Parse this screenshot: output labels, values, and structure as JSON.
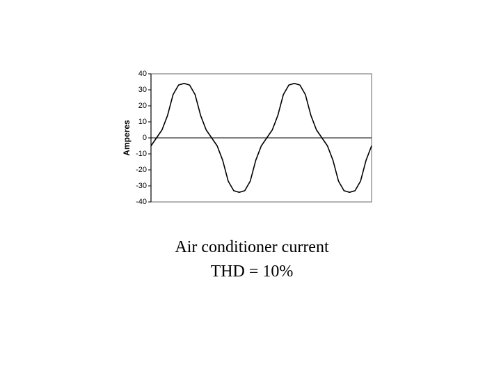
{
  "chart_data": {
    "type": "line",
    "ylabel": "Amperes",
    "caption": [
      "Air conditioner current",
      "THD = 10%"
    ],
    "values": [
      -5,
      0,
      5,
      14,
      27,
      33,
      34,
      33,
      27,
      14,
      5,
      0,
      -5,
      -14,
      -27,
      -33,
      -34,
      -33,
      -27,
      -14,
      -5,
      0,
      5,
      14,
      27,
      33,
      34,
      33,
      27,
      14,
      5,
      0,
      -5,
      -14,
      -27,
      -33,
      -34,
      -33,
      -27,
      -14,
      -5
    ],
    "color": "#000000",
    "ylim": [
      -40,
      40
    ],
    "yticks": [
      -40,
      -30,
      -20,
      -10,
      0,
      10,
      20,
      30,
      40
    ],
    "zero_line": true
  }
}
